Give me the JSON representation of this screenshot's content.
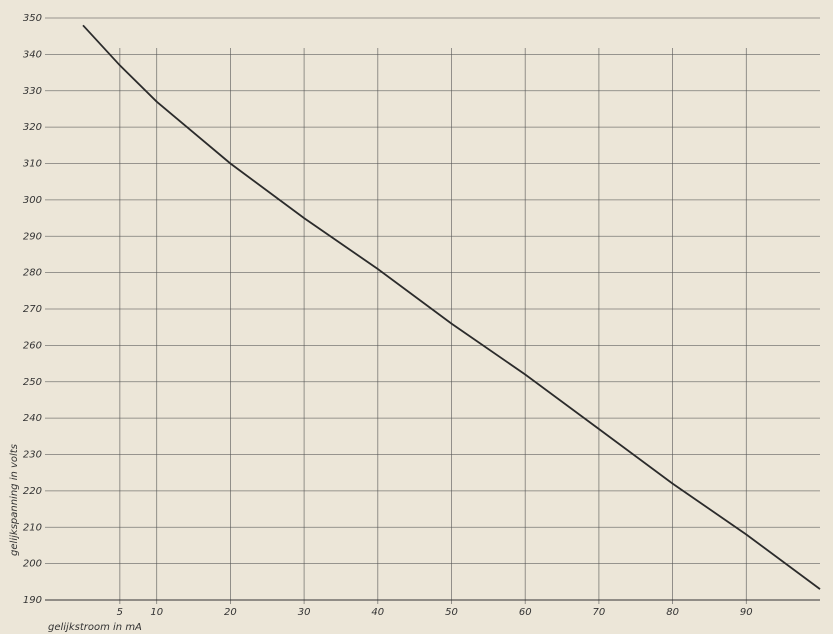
{
  "chart_data": {
    "type": "line",
    "x_label": "gelijkstroom in mA",
    "y_label": "gelijkspanning in volts",
    "x": [
      0,
      5,
      10,
      20,
      30,
      40,
      50,
      60,
      70,
      80,
      90,
      100
    ],
    "series": [
      {
        "color": "#2b2b2b",
        "values": [
          348,
          337,
          327,
          310,
          295,
          281,
          266,
          252,
          237,
          222,
          208,
          193
        ]
      }
    ],
    "xlim": [
      0,
      100
    ],
    "xticks": [
      5,
      10,
      20,
      30,
      40,
      50,
      60,
      70,
      80,
      90
    ],
    "ylim": [
      190,
      350
    ],
    "yticks": [
      190,
      200,
      210,
      220,
      230,
      240,
      250,
      260,
      270,
      280,
      290,
      300,
      310,
      320,
      330,
      340,
      350
    ],
    "grid": true
  }
}
